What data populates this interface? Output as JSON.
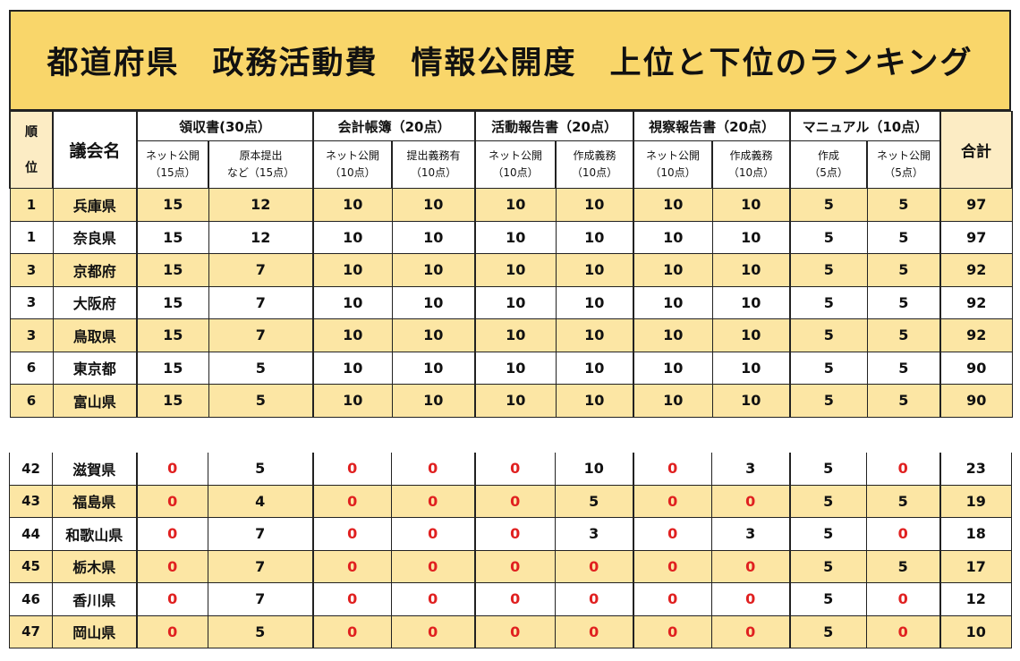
{
  "title": "都道府県　政務活動費　情報公開度　上位と下位のランキング",
  "header": {
    "rank_top": "順",
    "rank_bottom": "位",
    "name": "議会名",
    "total": "合計",
    "groups": [
      {
        "label": "領収書(30点）",
        "subs": [
          {
            "line1": "ネット公開",
            "line2": "（15点）"
          },
          {
            "line1": "原本提出",
            "line2": "など（15点）"
          }
        ]
      },
      {
        "label": "会計帳簿（20点）",
        "subs": [
          {
            "line1": "ネット公開",
            "line2": "（10点）"
          },
          {
            "line1": "提出義務有",
            "line2": "（10点）"
          }
        ]
      },
      {
        "label": "活動報告書（20点）",
        "subs": [
          {
            "line1": "ネット公開",
            "line2": "（10点）"
          },
          {
            "line1": "作成義務",
            "line2": "（10点）"
          }
        ]
      },
      {
        "label": "視察報告書（20点）",
        "subs": [
          {
            "line1": "ネット公開",
            "line2": "（10点）"
          },
          {
            "line1": "作成義務",
            "line2": "（10点）"
          }
        ]
      },
      {
        "label": "マニュアル（10点）",
        "subs": [
          {
            "line1": "作成",
            "line2": "（5点）"
          },
          {
            "line1": "ネット公開",
            "line2": "（5点）"
          }
        ]
      }
    ]
  },
  "colors": {
    "title_bg": "#F9D66A",
    "stripe": "#FCE6A4",
    "header_cream": "#FCECC4",
    "zero_red": "#E02020"
  },
  "top_rows": [
    {
      "rank": "1",
      "name": "兵庫県",
      "v": [
        "15",
        "12",
        "10",
        "10",
        "10",
        "10",
        "10",
        "10",
        "5",
        "5"
      ],
      "total": "97"
    },
    {
      "rank": "1",
      "name": "奈良県",
      "v": [
        "15",
        "12",
        "10",
        "10",
        "10",
        "10",
        "10",
        "10",
        "5",
        "5"
      ],
      "total": "97"
    },
    {
      "rank": "3",
      "name": "京都府",
      "v": [
        "15",
        "7",
        "10",
        "10",
        "10",
        "10",
        "10",
        "10",
        "5",
        "5"
      ],
      "total": "92"
    },
    {
      "rank": "3",
      "name": "大阪府",
      "v": [
        "15",
        "7",
        "10",
        "10",
        "10",
        "10",
        "10",
        "10",
        "5",
        "5"
      ],
      "total": "92"
    },
    {
      "rank": "3",
      "name": "鳥取県",
      "v": [
        "15",
        "7",
        "10",
        "10",
        "10",
        "10",
        "10",
        "10",
        "5",
        "5"
      ],
      "total": "92"
    },
    {
      "rank": "6",
      "name": "東京都",
      "v": [
        "15",
        "5",
        "10",
        "10",
        "10",
        "10",
        "10",
        "10",
        "5",
        "5"
      ],
      "total": "90"
    },
    {
      "rank": "6",
      "name": "富山県",
      "v": [
        "15",
        "5",
        "10",
        "10",
        "10",
        "10",
        "10",
        "10",
        "5",
        "5"
      ],
      "total": "90"
    }
  ],
  "bottom_rows": [
    {
      "rank": "42",
      "name": "滋賀県",
      "v": [
        "0",
        "5",
        "0",
        "0",
        "0",
        "10",
        "0",
        "3",
        "5",
        "0"
      ],
      "total": "23"
    },
    {
      "rank": "43",
      "name": "福島県",
      "v": [
        "0",
        "4",
        "0",
        "0",
        "0",
        "5",
        "0",
        "0",
        "5",
        "5"
      ],
      "total": "19"
    },
    {
      "rank": "44",
      "name": "和歌山県",
      "v": [
        "0",
        "7",
        "0",
        "0",
        "0",
        "3",
        "0",
        "3",
        "5",
        "0"
      ],
      "total": "18"
    },
    {
      "rank": "45",
      "name": "栃木県",
      "v": [
        "0",
        "7",
        "0",
        "0",
        "0",
        "0",
        "0",
        "0",
        "5",
        "5"
      ],
      "total": "17"
    },
    {
      "rank": "46",
      "name": "香川県",
      "v": [
        "0",
        "7",
        "0",
        "0",
        "0",
        "0",
        "0",
        "0",
        "5",
        "0"
      ],
      "total": "12"
    },
    {
      "rank": "47",
      "name": "岡山県",
      "v": [
        "0",
        "5",
        "0",
        "0",
        "0",
        "0",
        "0",
        "0",
        "5",
        "0"
      ],
      "total": "10"
    }
  ]
}
